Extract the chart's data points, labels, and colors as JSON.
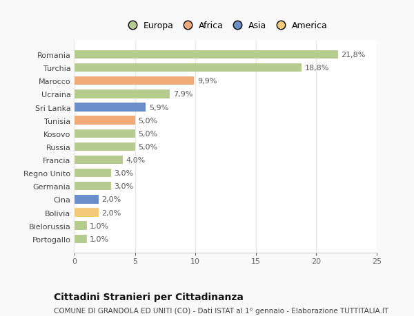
{
  "categories": [
    "Portogallo",
    "Bielorussia",
    "Bolivia",
    "Cina",
    "Germania",
    "Regno Unito",
    "Francia",
    "Russia",
    "Kosovo",
    "Tunisia",
    "Sri Lanka",
    "Ucraina",
    "Marocco",
    "Turchia",
    "Romania"
  ],
  "values": [
    1.0,
    1.0,
    2.0,
    2.0,
    3.0,
    3.0,
    4.0,
    5.0,
    5.0,
    5.0,
    5.9,
    7.9,
    9.9,
    18.8,
    21.8
  ],
  "colors": [
    "#b5cc8e",
    "#b5cc8e",
    "#f5c97a",
    "#6b8ec9",
    "#b5cc8e",
    "#b5cc8e",
    "#b5cc8e",
    "#b5cc8e",
    "#b5cc8e",
    "#f0aa78",
    "#6b8ec9",
    "#b5cc8e",
    "#f0aa78",
    "#b5cc8e",
    "#b5cc8e"
  ],
  "labels": [
    "1,0%",
    "1,0%",
    "2,0%",
    "2,0%",
    "3,0%",
    "3,0%",
    "4,0%",
    "5,0%",
    "5,0%",
    "5,0%",
    "5,9%",
    "7,9%",
    "9,9%",
    "18,8%",
    "21,8%"
  ],
  "legend_labels": [
    "Europa",
    "Africa",
    "Asia",
    "America"
  ],
  "legend_colors": [
    "#b5cc8e",
    "#f0aa78",
    "#6b8ec9",
    "#f5c97a"
  ],
  "title": "Cittadini Stranieri per Cittadinanza",
  "subtitle": "COMUNE DI GRANDOLA ED UNITI (CO) - Dati ISTAT al 1° gennaio - Elaborazione TUTTITALIA.IT",
  "xlim": [
    0,
    25
  ],
  "xticks": [
    0,
    5,
    10,
    15,
    20,
    25
  ],
  "background_color": "#f9f9f9",
  "plot_bg_color": "#ffffff",
  "grid_color": "#e8e8e8",
  "bar_height": 0.65,
  "label_fontsize": 8,
  "tick_fontsize": 8,
  "title_fontsize": 10,
  "subtitle_fontsize": 7.5
}
